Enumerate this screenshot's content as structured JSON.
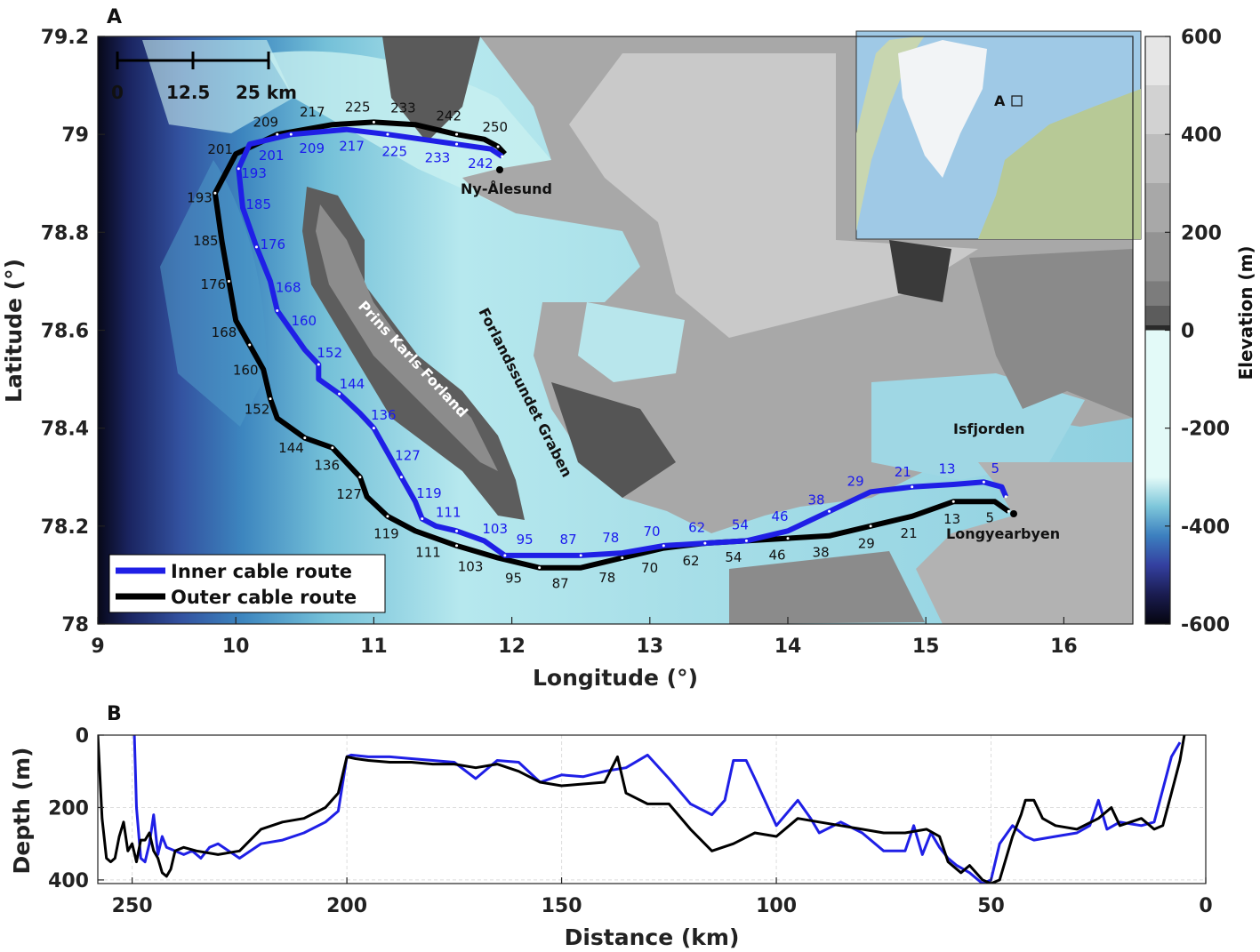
{
  "panel_a": {
    "letter": "A",
    "xlabel": "Longitude (°)",
    "ylabel": "Latitude (°)",
    "xticks": [
      "9",
      "10",
      "11",
      "12",
      "13",
      "14",
      "15",
      "16"
    ],
    "yticks": [
      "79.2",
      "79",
      "78.8",
      "78.6",
      "78.4",
      "78.2",
      "78"
    ],
    "scalebar": {
      "labels": [
        "0",
        "12.5",
        "25 km"
      ]
    },
    "places": {
      "ny_alesund": "Ny-Ålesund",
      "longyearbyen": "Longyearbyen",
      "isfjorden": "Isfjorden"
    },
    "features": {
      "forland": "Prins Karls Forland",
      "graben": "Forlandssundet Graben"
    },
    "inset_label": "A",
    "legend": {
      "inner": "Inner cable route",
      "outer": "Outer cable route"
    },
    "inner_km_labels": [
      "5",
      "13",
      "21",
      "29",
      "38",
      "46",
      "54",
      "62",
      "70",
      "78",
      "87",
      "95",
      "103",
      "111",
      "119",
      "127",
      "136",
      "144",
      "152",
      "160",
      "168",
      "176",
      "185",
      "193",
      "201",
      "209",
      "217",
      "225",
      "233",
      "242"
    ],
    "outer_km_labels": [
      "5",
      "13",
      "21",
      "29",
      "38",
      "46",
      "54",
      "62",
      "70",
      "78",
      "87",
      "95",
      "103",
      "111",
      "119",
      "127",
      "136",
      "144",
      "152",
      "160",
      "168",
      "176",
      "185",
      "193",
      "201",
      "209",
      "217",
      "225",
      "233",
      "242",
      "250"
    ],
    "colorbar": {
      "label": "Elevation (m)",
      "ticks": [
        "600",
        "400",
        "200",
        "0",
        "-200",
        "-400",
        "-600"
      ]
    }
  },
  "panel_b": {
    "letter": "B",
    "xlabel": "Distance (km)",
    "ylabel": "Depth (m)",
    "xticks": [
      "250",
      "200",
      "150",
      "100",
      "50",
      "0"
    ],
    "yticks": [
      "0",
      "200",
      "400"
    ]
  },
  "colors": {
    "inner": "#1f1fe6",
    "outer": "#000000"
  },
  "chart_data": [
    {
      "type": "map",
      "xlabel": "Longitude (°)",
      "ylabel": "Latitude (°)",
      "xlim": [
        9,
        16.5
      ],
      "ylim": [
        78,
        79.2
      ],
      "series": [
        {
          "name": "Inner cable route",
          "lon": [
            15.58,
            15.55,
            15.42,
            15.2,
            14.9,
            14.6,
            14.3,
            14.0,
            13.7,
            13.4,
            13.1,
            12.8,
            12.5,
            12.2,
            11.95,
            11.8,
            11.6,
            11.45,
            11.35,
            11.3,
            11.2,
            11.1,
            11.0,
            10.9,
            10.75,
            10.6,
            10.6,
            10.5,
            10.3,
            10.25,
            10.15,
            10.05,
            10.02,
            10.1,
            10.4,
            10.8,
            11.1,
            11.35,
            11.6,
            11.85,
            11.93
          ],
          "lat": [
            78.26,
            78.28,
            78.29,
            78.285,
            78.28,
            78.27,
            78.23,
            78.19,
            78.17,
            78.165,
            78.16,
            78.145,
            78.14,
            78.14,
            78.14,
            78.17,
            78.19,
            78.2,
            78.215,
            78.25,
            78.3,
            78.35,
            78.4,
            78.43,
            78.47,
            78.5,
            78.53,
            78.56,
            78.64,
            78.7,
            78.77,
            78.85,
            78.93,
            78.98,
            79.0,
            79.01,
            79.0,
            78.99,
            78.98,
            78.97,
            78.955
          ]
        },
        {
          "name": "Outer cable route",
          "lon": [
            15.6,
            15.5,
            15.2,
            14.9,
            14.6,
            14.3,
            14.0,
            13.7,
            13.4,
            13.1,
            12.8,
            12.5,
            12.2,
            11.9,
            11.6,
            11.3,
            11.1,
            10.95,
            10.9,
            10.8,
            10.7,
            10.6,
            10.5,
            10.3,
            10.25,
            10.2,
            10.1,
            10.0,
            9.95,
            9.9,
            9.85,
            10.0,
            10.3,
            10.7,
            11.0,
            11.3,
            11.6,
            11.8,
            11.9,
            11.95
          ],
          "lat": [
            78.23,
            78.25,
            78.25,
            78.22,
            78.2,
            78.18,
            78.175,
            78.17,
            78.165,
            78.155,
            78.135,
            78.115,
            78.115,
            78.135,
            78.16,
            78.19,
            78.22,
            78.26,
            78.3,
            78.33,
            78.36,
            78.37,
            78.38,
            78.42,
            78.46,
            78.52,
            78.57,
            78.62,
            78.7,
            78.78,
            78.88,
            78.96,
            79.0,
            79.02,
            79.025,
            79.02,
            79.0,
            78.99,
            78.975,
            78.96
          ]
        }
      ]
    },
    {
      "type": "line",
      "xlabel": "Distance (km)",
      "ylabel": "Depth (m)",
      "xlim": [
        258,
        0
      ],
      "ylim": [
        410,
        0
      ],
      "series": [
        {
          "name": "Inner cable route",
          "x": [
            249.5,
            249,
            248,
            247,
            246,
            245,
            244,
            243,
            242,
            240,
            238,
            236,
            234,
            232,
            230,
            225,
            220,
            215,
            210,
            205,
            202,
            200,
            199,
            195,
            190,
            185,
            180,
            175,
            170,
            165,
            160,
            155,
            150,
            145,
            140,
            135,
            130,
            125,
            120,
            115,
            112,
            110,
            107,
            105,
            100,
            95,
            92,
            90,
            85,
            80,
            75,
            70,
            68,
            66,
            64,
            62,
            60,
            58,
            55,
            52,
            50,
            48,
            45,
            42,
            40,
            35,
            30,
            27,
            25,
            23,
            20,
            15,
            12,
            10,
            8,
            6
          ],
          "y": [
            0,
            200,
            340,
            350,
            300,
            220,
            330,
            280,
            310,
            320,
            330,
            320,
            340,
            310,
            300,
            340,
            300,
            290,
            270,
            240,
            210,
            60,
            55,
            60,
            60,
            65,
            70,
            75,
            120,
            70,
            75,
            130,
            110,
            115,
            100,
            90,
            55,
            120,
            190,
            220,
            180,
            70,
            70,
            120,
            250,
            180,
            230,
            270,
            240,
            270,
            320,
            320,
            250,
            330,
            270,
            310,
            340,
            360,
            380,
            410,
            400,
            300,
            250,
            280,
            290,
            280,
            270,
            250,
            180,
            260,
            240,
            250,
            240,
            150,
            60,
            20
          ]
        },
        {
          "name": "Outer cable route",
          "x": [
            258,
            257,
            256,
            255,
            254,
            253,
            252,
            251,
            250,
            249,
            248,
            247,
            246,
            245,
            244,
            243,
            242,
            241,
            240,
            238,
            235,
            230,
            225,
            220,
            215,
            210,
            205,
            202,
            200,
            198,
            195,
            190,
            185,
            180,
            175,
            170,
            165,
            160,
            155,
            150,
            145,
            140,
            137,
            135,
            130,
            125,
            120,
            115,
            110,
            105,
            100,
            95,
            90,
            85,
            80,
            75,
            70,
            65,
            62,
            60,
            57,
            55,
            52,
            50,
            48,
            45,
            43,
            42,
            40,
            38,
            35,
            30,
            25,
            22,
            20,
            15,
            12,
            10,
            8,
            6,
            5
          ],
          "y": [
            0,
            230,
            340,
            350,
            340,
            280,
            240,
            320,
            300,
            350,
            290,
            290,
            270,
            320,
            340,
            380,
            390,
            370,
            320,
            310,
            320,
            330,
            320,
            260,
            240,
            230,
            200,
            160,
            60,
            65,
            70,
            75,
            75,
            80,
            80,
            90,
            80,
            100,
            130,
            140,
            135,
            130,
            60,
            160,
            190,
            190,
            260,
            320,
            300,
            270,
            280,
            230,
            240,
            250,
            260,
            270,
            270,
            260,
            280,
            350,
            380,
            360,
            400,
            410,
            400,
            280,
            220,
            180,
            180,
            230,
            250,
            260,
            230,
            200,
            250,
            230,
            260,
            250,
            160,
            70,
            0
          ]
        }
      ]
    }
  ]
}
